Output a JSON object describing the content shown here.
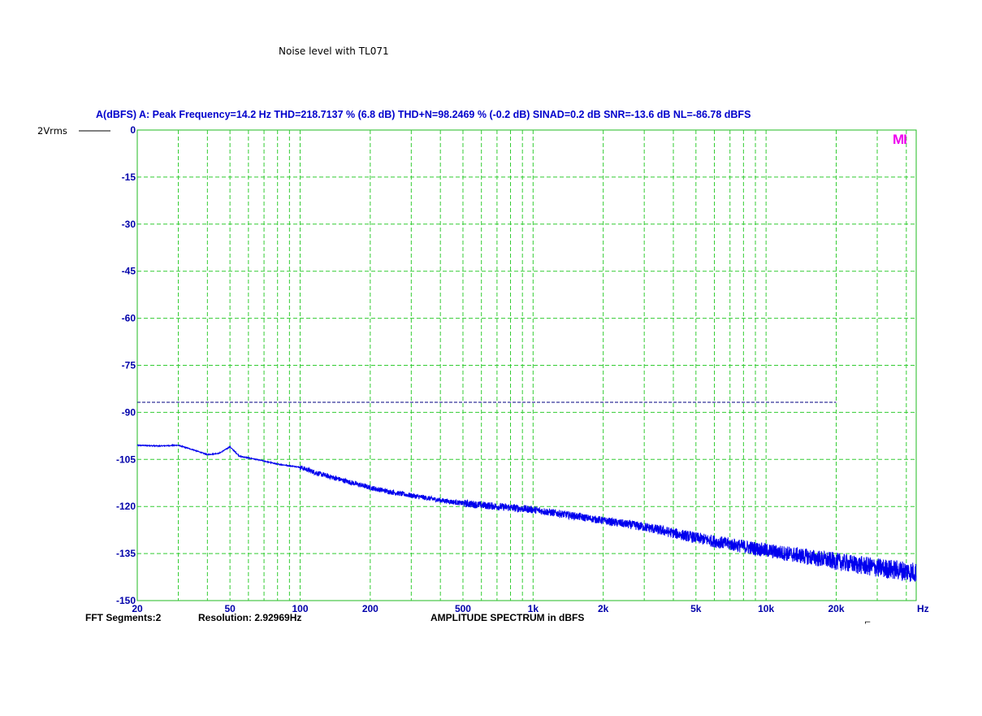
{
  "chart_data": {
    "type": "line",
    "title": "Noise level with TL071",
    "header": "A(dBFS)  A: Peak Frequency=14.2 Hz  THD=218.7137 % (6.8 dB)  THD+N=98.2469 % (-0.2 dB)  SINAD=0.2 dB  SNR=-13.6 dB  NL=-86.78 dBFS",
    "scale_label": "2Vrms",
    "logo": "MI",
    "xscale": "log",
    "xlim": [
      20,
      44100
    ],
    "ylim": [
      -150,
      0
    ],
    "x_unit_label": "Hz",
    "x_ticks": [
      {
        "value": 20,
        "label": "20"
      },
      {
        "value": 50,
        "label": "50"
      },
      {
        "value": 100,
        "label": "100"
      },
      {
        "value": 200,
        "label": "200"
      },
      {
        "value": 500,
        "label": "500"
      },
      {
        "value": 1000,
        "label": "1k"
      },
      {
        "value": 2000,
        "label": "2k"
      },
      {
        "value": 5000,
        "label": "5k"
      },
      {
        "value": 10000,
        "label": "10k"
      },
      {
        "value": 20000,
        "label": "20k"
      }
    ],
    "y_ticks": [
      0,
      -15,
      -30,
      -45,
      -60,
      -75,
      -90,
      -105,
      -120,
      -135,
      -150
    ],
    "grid": true,
    "colors": {
      "grid": "#33cc33",
      "frame": "#22bb22",
      "series": "#0000ee",
      "axis_text": "#0000aa",
      "noise_level": "#000080",
      "logo": "#ee00ee"
    },
    "noise_level": {
      "value": -86.78,
      "x_from": 20,
      "x_to": 20000,
      "style": "dashed"
    },
    "series": [
      {
        "x": [
          20,
          25,
          30,
          35,
          40,
          45,
          50,
          55,
          60,
          70,
          80,
          90,
          100,
          120,
          150,
          200,
          250,
          300,
          400,
          500,
          700,
          1000,
          1500,
          2000,
          3000,
          5000,
          7000,
          10000,
          15000,
          20000,
          30000,
          44100
        ],
        "y": [
          -100.5,
          -100.7,
          -100.5,
          -102,
          -103.5,
          -103,
          -101,
          -104,
          -104.5,
          -105.5,
          -106.5,
          -107,
          -107.5,
          -109.5,
          -111.5,
          -114,
          -115.5,
          -116.5,
          -118,
          -119,
          -120,
          -121,
          -123,
          -124.5,
          -126.5,
          -130,
          -132,
          -134,
          -136,
          -137.5,
          -139.5,
          -141
        ]
      }
    ],
    "footer": {
      "segments": "FFT Segments:2",
      "resolution": "Resolution: 2.92969Hz",
      "caption": "AMPLITUDE SPECTRUM in dBFS",
      "marker": "⌐"
    }
  }
}
